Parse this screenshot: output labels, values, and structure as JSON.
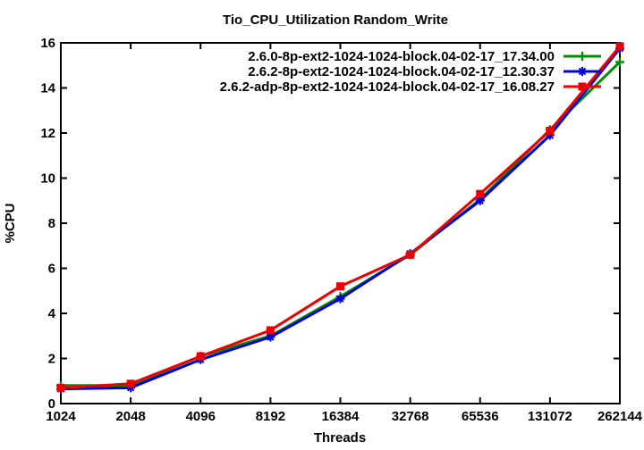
{
  "title": "Tio_CPU_Utilization Random_Write",
  "x_axis": {
    "title": "Threads"
  },
  "y_axis": {
    "title": "%CPU"
  },
  "chart_data": {
    "type": "line",
    "title": "Tio_CPU_Utilization Random_Write",
    "xlabel": "Threads",
    "ylabel": "%CPU",
    "x_scale": "categorical-powers-of-2",
    "categories": [
      1024,
      2048,
      4096,
      8192,
      16384,
      32768,
      65536,
      131072,
      262144
    ],
    "ylim": [
      0,
      16
    ],
    "ytick_step": 2,
    "grid": false,
    "legend_position": "top-right-inside",
    "axis_color": "#000000",
    "series": [
      {
        "name": "2.6.0-8p-ext2-1024-1024-block.04-02-17_17.34.00",
        "color": "#008f00",
        "marker": "plus",
        "values": [
          0.8,
          0.8,
          2.1,
          3.0,
          4.75,
          6.6,
          9.05,
          12.15,
          15.15
        ]
      },
      {
        "name": "2.6.2-8p-ext2-1024-1024-block.04-02-17_12.30.37",
        "color": "#0000d8",
        "marker": "asterisk",
        "values": [
          0.65,
          0.7,
          1.95,
          2.95,
          4.65,
          6.65,
          9.0,
          11.9,
          15.75
        ]
      },
      {
        "name": "2.6.2-adp-8p-ext2-1024-1024-block.04-02-17_16.08.27",
        "color": "#ee0000",
        "marker": "filled-square",
        "values": [
          0.7,
          0.88,
          2.1,
          3.25,
          5.2,
          6.6,
          9.3,
          12.1,
          15.85
        ]
      }
    ]
  }
}
